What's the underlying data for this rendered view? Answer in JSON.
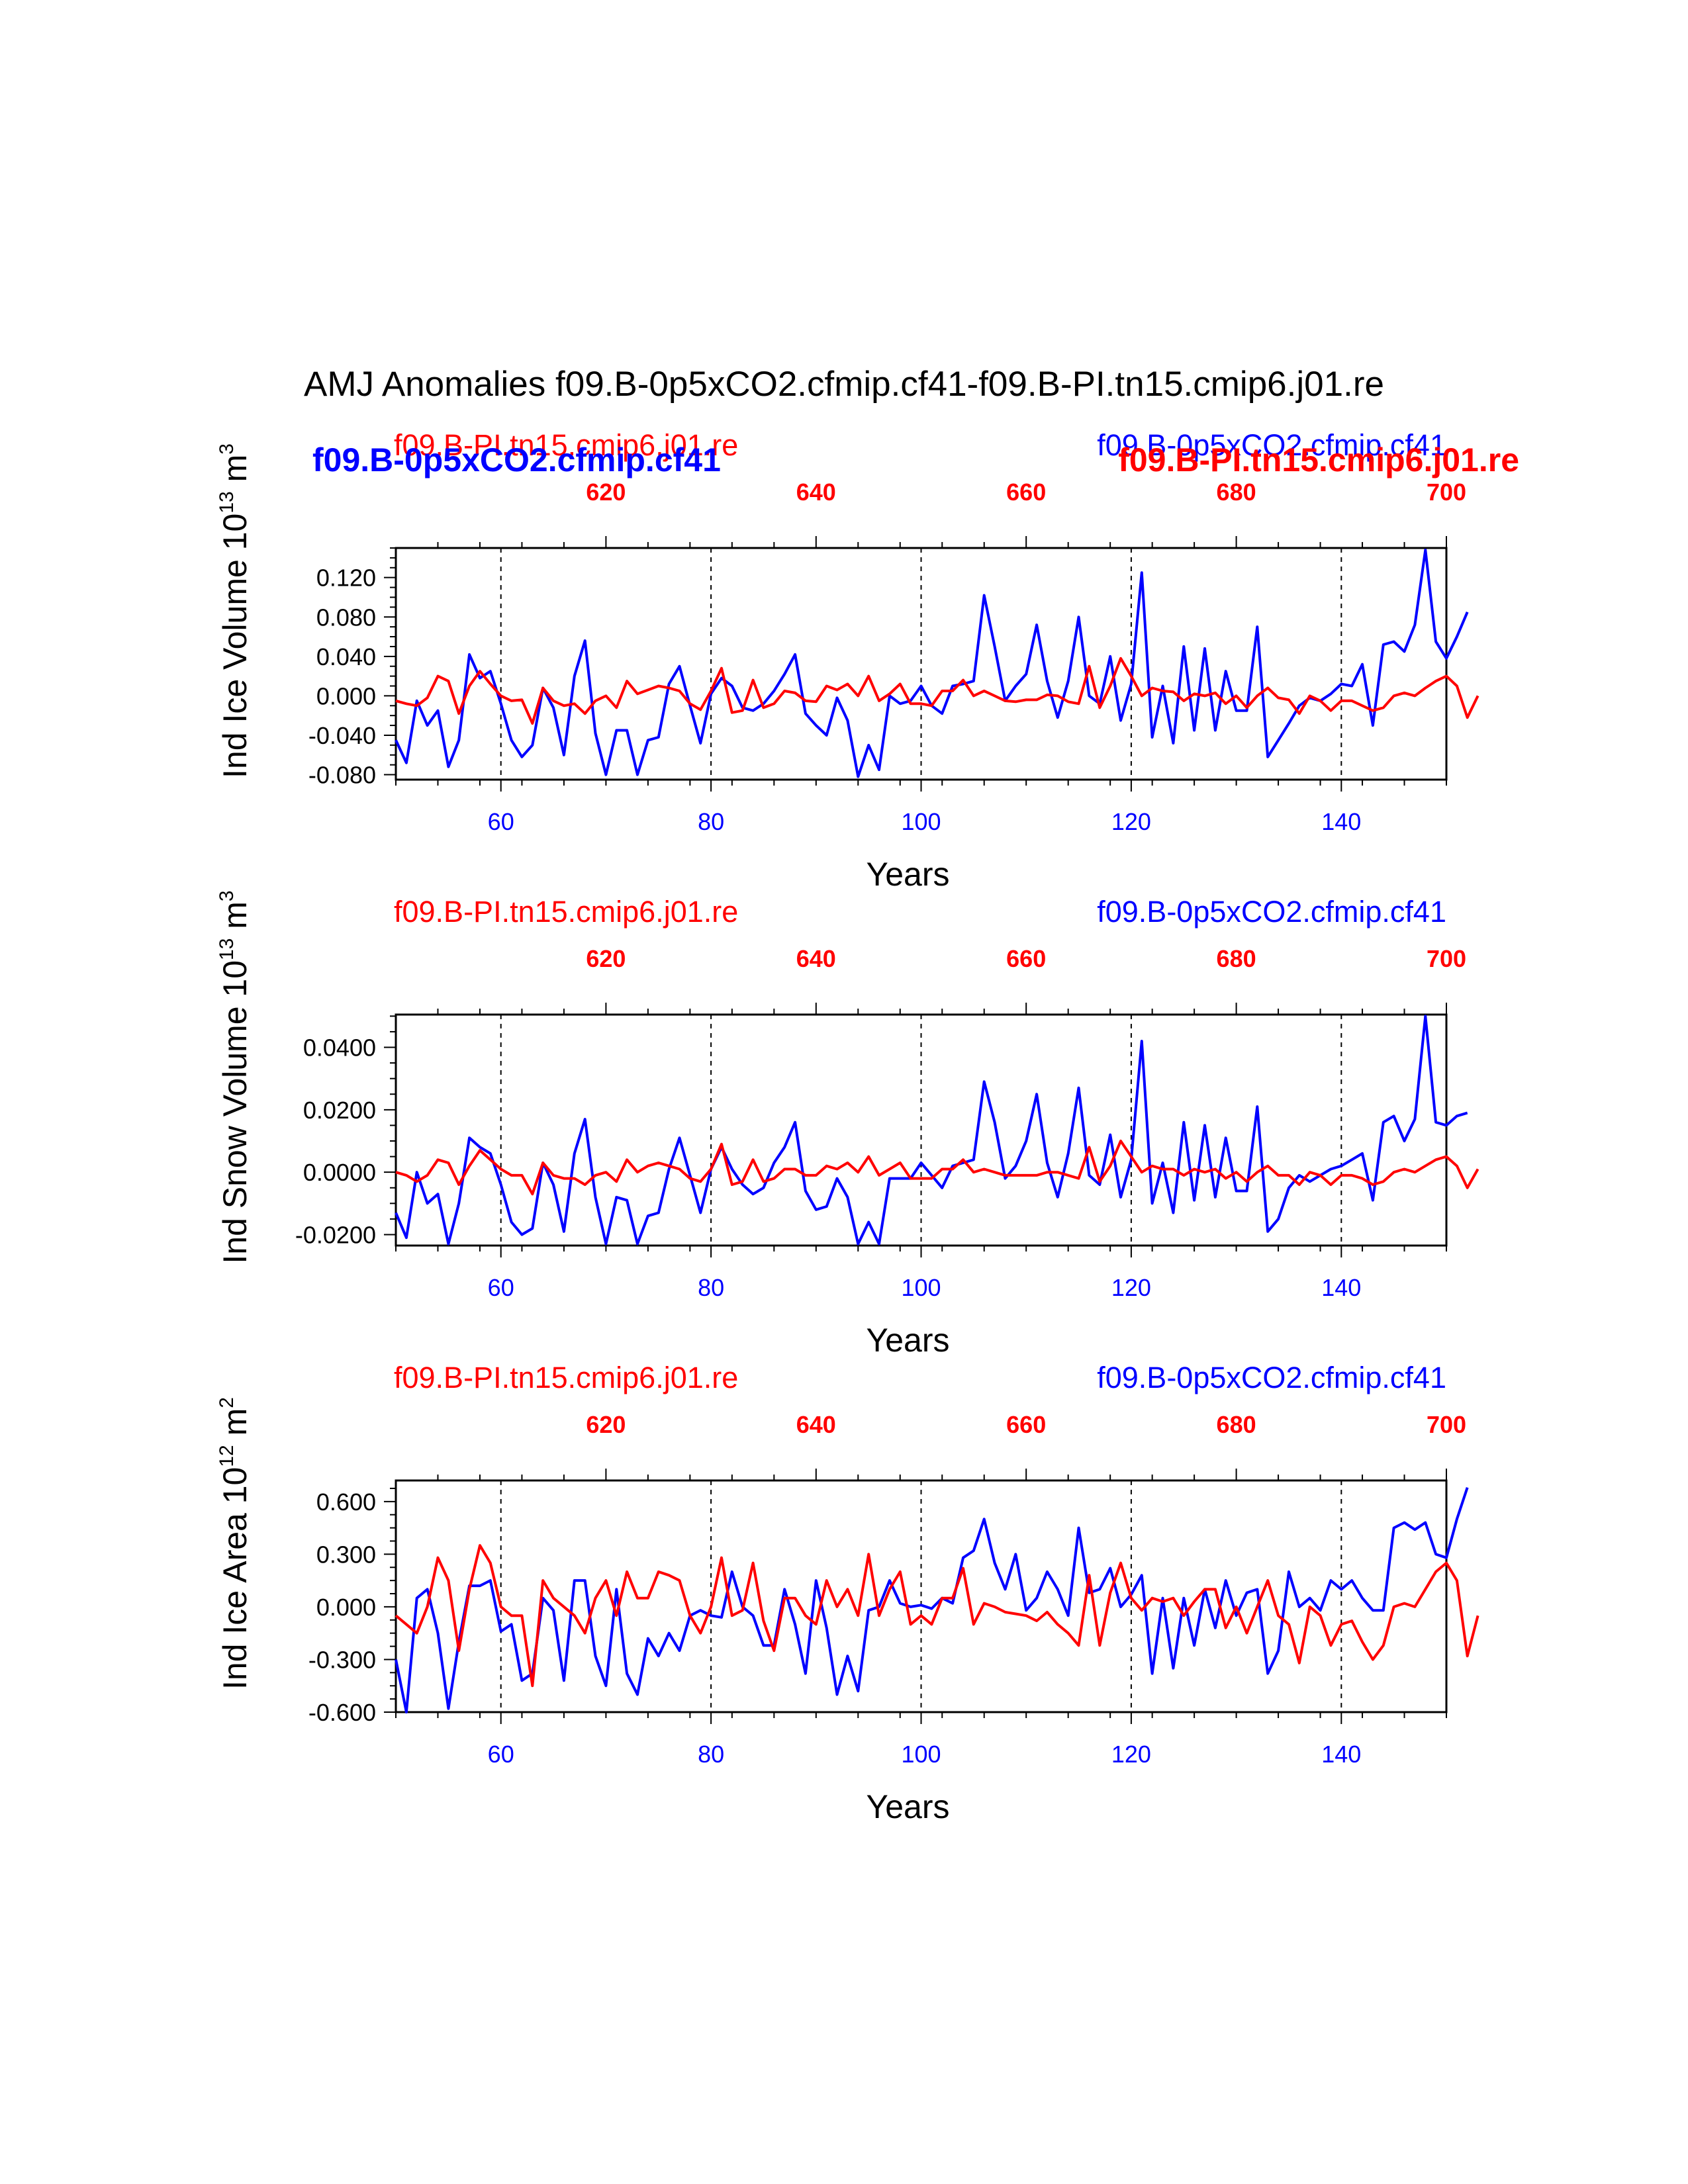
{
  "title": "AMJ Anomalies f09.B-0p5xCO2.cfmip.cf41-f09.B-PI.tn15.cmip6.j01.re",
  "colors": {
    "exp": "#0000ff",
    "ctrl": "#ff0000",
    "axis": "#000000"
  },
  "legend_overlay": {
    "exp": "f09.B-0p5xCO2.cfmip.cf41",
    "ctrl": "f09.B-PI.tn15.cmip6.j01.re"
  },
  "chart_data": [
    {
      "type": "line",
      "ylabel_main": "Ind Ice Volume 10",
      "ylabel_sup": "13",
      "ylabel_unit": " m",
      "ylabel_unit_sup": "3",
      "xlabel": "Years",
      "top_left_label": "f09.B-PI.tn15.cmip6.j01.re",
      "top_right_label": "f09.B-0p5xCO2.cfmip.cf41",
      "xlim": [
        50,
        150
      ],
      "ylim": [
        -0.085,
        0.15
      ],
      "yticks": [
        -0.08,
        -0.04,
        0.0,
        0.04,
        0.08,
        0.12
      ],
      "ytick_labels": [
        "-0.080",
        "-0.040",
        "0.000",
        "0.040",
        "0.080",
        "0.120"
      ],
      "xticks": [
        60,
        80,
        100,
        120,
        140
      ],
      "xtick_labels": [
        "60",
        "80",
        "100",
        "120",
        "140"
      ],
      "top_xlim": [
        600,
        700
      ],
      "top_xticks": [
        620,
        640,
        660,
        680,
        700
      ],
      "top_xtick_labels": [
        "620",
        "640",
        "660",
        "680",
        "700"
      ],
      "x_start": 50,
      "series": [
        {
          "name": "f09.B-0p5xCO2.cfmip.cf41",
          "color": "#0000ff",
          "values": [
            -0.045,
            -0.068,
            -0.005,
            -0.03,
            -0.015,
            -0.072,
            -0.045,
            0.042,
            0.018,
            0.025,
            -0.008,
            -0.045,
            -0.062,
            -0.05,
            0.008,
            -0.012,
            -0.06,
            0.02,
            0.056,
            -0.038,
            -0.08,
            -0.035,
            -0.035,
            -0.08,
            -0.045,
            -0.042,
            0.012,
            0.03,
            -0.01,
            -0.048,
            0.002,
            0.018,
            0.01,
            -0.012,
            -0.015,
            -0.008,
            0.005,
            0.022,
            0.042,
            -0.018,
            -0.03,
            -0.04,
            -0.002,
            -0.025,
            -0.082,
            -0.05,
            -0.075,
            0.0,
            -0.008,
            -0.005,
            0.01,
            -0.01,
            -0.018,
            0.01,
            0.012,
            0.015,
            0.102,
            0.05,
            -0.005,
            0.01,
            0.022,
            0.072,
            0.015,
            -0.022,
            0.015,
            0.08,
            0.0,
            -0.008,
            0.04,
            -0.025,
            0.012,
            0.125,
            -0.042,
            0.01,
            -0.048,
            0.05,
            -0.035,
            0.048,
            -0.035,
            0.025,
            -0.015,
            -0.015,
            0.07,
            -0.062,
            -0.045,
            -0.028,
            -0.01,
            -0.002,
            -0.005,
            0.002,
            0.012,
            0.01,
            0.032,
            -0.03,
            0.052,
            0.055,
            0.045,
            0.072,
            0.148,
            0.055,
            0.038,
            0.06,
            0.085
          ]
        },
        {
          "name": "f09.B-PI.tn15.cmip6.j01.re",
          "color": "#ff0000",
          "values": [
            -0.005,
            -0.008,
            -0.01,
            -0.002,
            0.02,
            0.015,
            -0.018,
            0.01,
            0.025,
            0.012,
            0.0,
            -0.005,
            -0.004,
            -0.028,
            0.008,
            -0.005,
            -0.01,
            -0.008,
            -0.018,
            -0.005,
            0.0,
            -0.012,
            0.015,
            0.002,
            0.006,
            0.01,
            0.008,
            0.005,
            -0.008,
            -0.014,
            0.005,
            0.028,
            -0.017,
            -0.015,
            0.016,
            -0.012,
            -0.008,
            0.005,
            0.003,
            -0.005,
            -0.006,
            0.01,
            0.006,
            0.012,
            0.0,
            0.02,
            -0.005,
            0.002,
            0.012,
            -0.008,
            -0.008,
            -0.01,
            0.005,
            0.005,
            0.016,
            0.0,
            0.005,
            0.0,
            -0.005,
            -0.006,
            -0.004,
            -0.004,
            0.001,
            0.0,
            -0.006,
            -0.008,
            0.03,
            -0.012,
            0.01,
            0.038,
            0.02,
            0.0,
            0.008,
            0.005,
            0.004,
            -0.005,
            0.002,
            0.0,
            0.003,
            -0.008,
            0.0,
            -0.012,
            0.0,
            0.008,
            -0.002,
            -0.004,
            -0.018,
            0.0,
            -0.005,
            -0.015,
            -0.005,
            -0.005,
            -0.01,
            -0.015,
            -0.012,
            0.0,
            0.003,
            0.0,
            0.008,
            0.015,
            0.02,
            0.01,
            -0.022,
            0.0
          ]
        }
      ]
    },
    {
      "type": "line",
      "ylabel_main": "Ind Snow Volume 10",
      "ylabel_sup": "13",
      "ylabel_unit": " m",
      "ylabel_unit_sup": "3",
      "xlabel": "Years",
      "top_left_label": "f09.B-PI.tn15.cmip6.j01.re",
      "top_right_label": "f09.B-0p5xCO2.cfmip.cf41",
      "xlim": [
        50,
        150
      ],
      "ylim": [
        -0.0235,
        0.0505
      ],
      "yticks": [
        -0.02,
        0.0,
        0.02,
        0.04
      ],
      "ytick_labels": [
        "-0.0200",
        "0.0000",
        "0.0200",
        "0.0400"
      ],
      "xticks": [
        60,
        80,
        100,
        120,
        140
      ],
      "xtick_labels": [
        "60",
        "80",
        "100",
        "120",
        "140"
      ],
      "top_xlim": [
        600,
        700
      ],
      "top_xticks": [
        620,
        640,
        660,
        680,
        700
      ],
      "top_xtick_labels": [
        "620",
        "640",
        "660",
        "680",
        "700"
      ],
      "x_start": 50,
      "series": [
        {
          "name": "f09.B-0p5xCO2.cfmip.cf41",
          "color": "#0000ff",
          "values": [
            -0.013,
            -0.021,
            0.0,
            -0.01,
            -0.007,
            -0.023,
            -0.01,
            0.011,
            0.008,
            0.006,
            -0.004,
            -0.016,
            -0.02,
            -0.018,
            0.003,
            -0.004,
            -0.019,
            0.006,
            0.017,
            -0.008,
            -0.023,
            -0.008,
            -0.009,
            -0.023,
            -0.014,
            -0.013,
            0.001,
            0.011,
            -0.001,
            -0.013,
            0.001,
            0.008,
            0.001,
            -0.004,
            -0.007,
            -0.005,
            0.003,
            0.008,
            0.016,
            -0.006,
            -0.012,
            -0.011,
            -0.002,
            -0.008,
            -0.023,
            -0.016,
            -0.023,
            -0.002,
            -0.002,
            -0.002,
            0.003,
            -0.001,
            -0.005,
            0.002,
            0.003,
            0.004,
            0.029,
            0.016,
            -0.002,
            0.002,
            0.01,
            0.025,
            0.003,
            -0.008,
            0.006,
            0.027,
            -0.001,
            -0.004,
            0.012,
            -0.008,
            0.004,
            0.042,
            -0.01,
            0.003,
            -0.013,
            0.016,
            -0.009,
            0.015,
            -0.008,
            0.011,
            -0.006,
            -0.006,
            0.021,
            -0.019,
            -0.015,
            -0.005,
            -0.001,
            -0.003,
            -0.001,
            0.001,
            0.002,
            0.004,
            0.006,
            -0.009,
            0.016,
            0.018,
            0.01,
            0.017,
            0.05,
            0.016,
            0.015,
            0.018,
            0.019
          ]
        },
        {
          "name": "f09.B-PI.tn15.cmip6.j01.re",
          "color": "#ff0000",
          "values": [
            0.0,
            -0.001,
            -0.003,
            -0.001,
            0.004,
            0.003,
            -0.004,
            0.002,
            0.007,
            0.004,
            0.001,
            -0.001,
            -0.001,
            -0.007,
            0.003,
            -0.001,
            -0.002,
            -0.002,
            -0.004,
            -0.001,
            0.0,
            -0.003,
            0.004,
            0.0,
            0.002,
            0.003,
            0.002,
            0.001,
            -0.002,
            -0.003,
            0.001,
            0.009,
            -0.004,
            -0.003,
            0.004,
            -0.003,
            -0.002,
            0.001,
            0.001,
            -0.001,
            -0.001,
            0.002,
            0.001,
            0.003,
            0.0,
            0.005,
            -0.001,
            0.001,
            0.003,
            -0.002,
            -0.002,
            -0.002,
            0.001,
            0.001,
            0.004,
            0.0,
            0.001,
            0.0,
            -0.001,
            -0.001,
            -0.001,
            -0.001,
            0.0,
            0.0,
            -0.001,
            -0.002,
            0.008,
            -0.003,
            0.002,
            0.01,
            0.005,
            0.0,
            0.002,
            0.001,
            0.001,
            -0.001,
            0.001,
            0.0,
            0.001,
            -0.002,
            0.0,
            -0.003,
            0.0,
            0.002,
            -0.001,
            -0.001,
            -0.004,
            0.0,
            -0.001,
            -0.004,
            -0.001,
            -0.001,
            -0.002,
            -0.004,
            -0.003,
            0.0,
            0.001,
            0.0,
            0.002,
            0.004,
            0.005,
            0.002,
            -0.005,
            0.001
          ]
        }
      ]
    },
    {
      "type": "line",
      "ylabel_main": "Ind Ice Area 10",
      "ylabel_sup": "12",
      "ylabel_unit": " m",
      "ylabel_unit_sup": "2",
      "xlabel": "Years",
      "top_left_label": "f09.B-PI.tn15.cmip6.j01.re",
      "top_right_label": "f09.B-0p5xCO2.cfmip.cf41",
      "xlim": [
        50,
        150
      ],
      "ylim": [
        -0.6,
        0.72
      ],
      "yticks": [
        -0.6,
        -0.3,
        0.0,
        0.3,
        0.6
      ],
      "ytick_labels": [
        "-0.600",
        "-0.300",
        "0.000",
        "0.300",
        "0.600"
      ],
      "xticks": [
        60,
        80,
        100,
        120,
        140
      ],
      "xtick_labels": [
        "60",
        "80",
        "100",
        "120",
        "140"
      ],
      "top_xlim": [
        600,
        700
      ],
      "top_xticks": [
        620,
        640,
        660,
        680,
        700
      ],
      "top_xtick_labels": [
        "620",
        "640",
        "660",
        "680",
        "700"
      ],
      "x_start": 50,
      "series": [
        {
          "name": "f09.B-0p5xCO2.cfmip.cf41",
          "color": "#0000ff",
          "values": [
            -0.3,
            -0.6,
            0.05,
            0.1,
            -0.15,
            -0.58,
            -0.2,
            0.12,
            0.12,
            0.15,
            -0.14,
            -0.1,
            -0.42,
            -0.38,
            0.05,
            -0.02,
            -0.42,
            0.15,
            0.15,
            -0.28,
            -0.45,
            0.1,
            -0.38,
            -0.5,
            -0.18,
            -0.28,
            -0.15,
            -0.25,
            -0.05,
            -0.02,
            -0.05,
            -0.06,
            0.2,
            0.0,
            -0.05,
            -0.22,
            -0.22,
            0.1,
            -0.1,
            -0.38,
            0.15,
            -0.12,
            -0.5,
            -0.28,
            -0.48,
            -0.02,
            0.0,
            0.15,
            0.02,
            0.0,
            0.01,
            -0.01,
            0.05,
            0.02,
            0.28,
            0.32,
            0.5,
            0.25,
            0.1,
            0.3,
            -0.02,
            0.05,
            0.2,
            0.1,
            -0.05,
            0.45,
            0.08,
            0.1,
            0.22,
            0.0,
            0.07,
            0.18,
            -0.38,
            0.05,
            -0.35,
            0.05,
            -0.22,
            0.1,
            -0.12,
            0.15,
            -0.05,
            0.08,
            0.1,
            -0.38,
            -0.25,
            0.2,
            0.0,
            0.05,
            -0.02,
            0.15,
            0.1,
            0.15,
            0.05,
            -0.02,
            -0.02,
            0.45,
            0.48,
            0.44,
            0.48,
            0.3,
            0.28,
            0.5,
            0.68
          ]
        },
        {
          "name": "f09.B-PI.tn15.cmip6.j01.re",
          "color": "#ff0000",
          "values": [
            -0.05,
            -0.1,
            -0.15,
            0.0,
            0.28,
            0.15,
            -0.25,
            0.1,
            0.35,
            0.25,
            0.0,
            -0.05,
            -0.05,
            -0.45,
            0.15,
            0.05,
            0.0,
            -0.05,
            -0.15,
            0.05,
            0.15,
            -0.05,
            0.2,
            0.05,
            0.05,
            0.2,
            0.18,
            0.15,
            -0.05,
            -0.15,
            0.0,
            0.28,
            -0.05,
            -0.02,
            0.25,
            -0.08,
            -0.25,
            0.05,
            0.05,
            -0.05,
            -0.1,
            0.15,
            0.0,
            0.1,
            -0.05,
            0.3,
            -0.05,
            0.1,
            0.2,
            -0.1,
            -0.05,
            -0.1,
            0.05,
            0.05,
            0.22,
            -0.1,
            0.02,
            0.0,
            -0.03,
            -0.04,
            -0.05,
            -0.08,
            -0.03,
            -0.1,
            -0.15,
            -0.22,
            0.18,
            -0.22,
            0.08,
            0.25,
            0.05,
            -0.02,
            0.05,
            0.03,
            0.05,
            -0.05,
            0.03,
            0.1,
            0.1,
            -0.12,
            0.0,
            -0.15,
            0.0,
            0.15,
            -0.05,
            -0.1,
            -0.32,
            0.0,
            -0.05,
            -0.22,
            -0.1,
            -0.08,
            -0.2,
            -0.3,
            -0.22,
            0.0,
            0.02,
            0.0,
            0.1,
            0.2,
            0.25,
            0.15,
            -0.28,
            -0.05
          ]
        }
      ]
    }
  ]
}
